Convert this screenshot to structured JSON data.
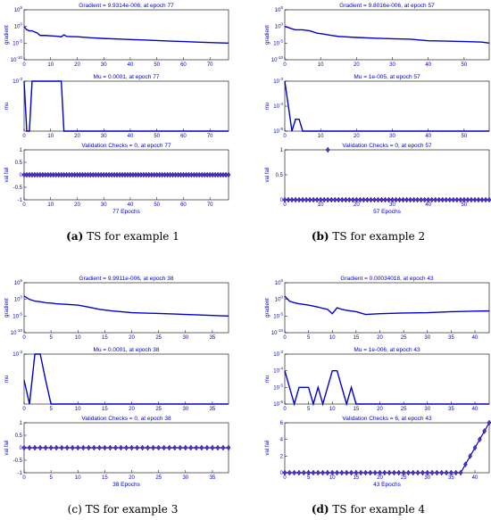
{
  "captions": [
    {
      "label": "(a)",
      "text": "TS for example 1"
    },
    {
      "label": "(b)",
      "text": "TS for example 2"
    },
    {
      "label": "(c)",
      "text": "TS for example 3"
    },
    {
      "label": "(d)",
      "text": "TS for example 4"
    }
  ],
  "colors": {
    "line": "#0000cc",
    "axis_text": "#0000cc",
    "marker_fill": "#5533aa",
    "marker_edge": "#0000cc"
  },
  "chart_data": [
    {
      "type": "line",
      "id": "a",
      "xlim": [
        0,
        77
      ],
      "xticks": [
        0,
        10,
        20,
        30,
        40,
        50,
        60,
        70
      ],
      "xlabel": "77 Epochs",
      "panels": [
        {
          "title": "Gradient = 9.9314e-006, at epoch 77",
          "ylabel": "gradient",
          "yscale": "log",
          "ylim": [
            1e-10,
            100000
          ],
          "yticks": [
            {
              "v": 100000,
              "t": "10^5"
            },
            {
              "v": 1,
              "t": "10^0"
            },
            {
              "v": 1e-05,
              "t": "10^-5"
            },
            {
              "v": 1e-10,
              "t": "10^-10"
            }
          ],
          "x": [
            0,
            1,
            2,
            3,
            5,
            6,
            8,
            10,
            12,
            14,
            15,
            16,
            18,
            20,
            25,
            30,
            35,
            40,
            45,
            50,
            55,
            60,
            65,
            70,
            75,
            77
          ],
          "y": [
            1,
            0.1,
            0.05,
            0.05,
            0.01,
            0.002,
            0.002,
            0.0015,
            0.0012,
            0.0008,
            0.003,
            0.001,
            0.0009,
            0.0008,
            0.0004,
            0.00025,
            0.00018,
            0.00012,
            9e-05,
            6e-05,
            4e-05,
            3e-05,
            2e-05,
            1.5e-05,
            1.1e-05,
            9.9e-06
          ]
        },
        {
          "title": "Mu = 0.0001, at epoch 77",
          "ylabel": "mu",
          "yscale": "log",
          "ylim": [
            0.0001,
            0.001
          ],
          "yticks": [
            {
              "v": 0.001,
              "t": "10^-3"
            }
          ],
          "x": [
            0,
            1,
            2,
            3,
            14,
            15,
            77
          ],
          "y": [
            0.001,
            0.0001,
            0.0001,
            0.001,
            0.001,
            0.0001,
            0.0001
          ]
        },
        {
          "title": "Validation Checks = 0, at epoch 77",
          "ylabel": "val fail",
          "yscale": "linear",
          "ylim": [
            -1,
            1
          ],
          "yticks": [
            {
              "v": 1,
              "t": "1"
            },
            {
              "v": 0.5,
              "t": "0.5"
            },
            {
              "v": 0,
              "t": "0"
            },
            {
              "v": -0.5,
              "t": "-0.5"
            },
            {
              "v": -1,
              "t": "-1"
            }
          ],
          "markers": "all",
          "x": "0..77",
          "y": 0
        }
      ]
    },
    {
      "type": "line",
      "id": "b",
      "xlim": [
        0,
        57
      ],
      "xticks": [
        0,
        10,
        20,
        30,
        40,
        50
      ],
      "xlabel": "57 Epochs",
      "panels": [
        {
          "title": "Gradient = 9.8016e-006, at epoch 57",
          "ylabel": "gradient",
          "yscale": "log",
          "ylim": [
            1e-10,
            100000
          ],
          "yticks": [
            {
              "v": 100000,
              "t": "10^5"
            },
            {
              "v": 1,
              "t": "10^0"
            },
            {
              "v": 1e-05,
              "t": "10^-5"
            },
            {
              "v": 1e-10,
              "t": "10^-10"
            }
          ],
          "x": [
            0,
            1,
            2,
            3,
            5,
            7,
            9,
            11,
            13,
            15,
            20,
            25,
            30,
            35,
            40,
            45,
            50,
            55,
            57
          ],
          "y": [
            1,
            0.5,
            0.2,
            0.1,
            0.1,
            0.05,
            0.01,
            0.005,
            0.002,
            0.001,
            0.0005,
            0.0003,
            0.0002,
            0.00015,
            5e-05,
            4e-05,
            3e-05,
            2e-05,
            9.8e-06
          ]
        },
        {
          "title": "Mu = 1e-005, at epoch 57",
          "ylabel": "mu",
          "yscale": "log",
          "ylim": [
            1e-05,
            0.001
          ],
          "yticks": [
            {
              "v": 0.001,
              "t": "10^-3"
            },
            {
              "v": 0.0001,
              "t": "10^-4"
            },
            {
              "v": 1e-05,
              "t": "10^-5"
            }
          ],
          "x": [
            0,
            1,
            2,
            3,
            4,
            5,
            6,
            57
          ],
          "y": [
            0.001,
            0.0001,
            1e-05,
            3e-05,
            3e-05,
            1e-05,
            1e-05,
            1e-05
          ]
        },
        {
          "title": "Validation Checks = 0, at epoch 57",
          "ylabel": "val fail",
          "yscale": "linear",
          "ylim": [
            0,
            1
          ],
          "yticks": [
            {
              "v": 1,
              "t": "1"
            },
            {
              "v": 0.5,
              "t": "0.5"
            },
            {
              "v": 0,
              "t": "0"
            }
          ],
          "markers": "all",
          "x": "0..57",
          "y": 0,
          "special": [
            {
              "x": 12,
              "y": 1
            }
          ]
        }
      ]
    },
    {
      "type": "line",
      "id": "c",
      "xlim": [
        0,
        38
      ],
      "xticks": [
        0,
        5,
        10,
        15,
        20,
        25,
        30,
        35
      ],
      "xlabel": "38 Epochs",
      "panels": [
        {
          "title": "Gradient = 9.9911e-006, at epoch 38",
          "ylabel": "gradient",
          "yscale": "log",
          "ylim": [
            1e-10,
            100000
          ],
          "yticks": [
            {
              "v": 100000,
              "t": "10^5"
            },
            {
              "v": 1,
              "t": "10^0"
            },
            {
              "v": 1e-05,
              "t": "10^-5"
            },
            {
              "v": 1e-10,
              "t": "10^-10"
            }
          ],
          "x": [
            0,
            1,
            2,
            3,
            4,
            5,
            6,
            8,
            10,
            12,
            14,
            16,
            18,
            20,
            22,
            25,
            28,
            30,
            33,
            35,
            38
          ],
          "y": [
            10,
            1,
            0.3,
            0.2,
            0.1,
            0.08,
            0.05,
            0.03,
            0.02,
            0.005,
            0.001,
            0.0004,
            0.0002,
            0.0001,
            8e-05,
            6e-05,
            4e-05,
            3e-05,
            2e-05,
            1.5e-05,
            1e-05
          ]
        },
        {
          "title": "Mu = 0.0001, at epoch 38",
          "ylabel": "mu",
          "yscale": "log",
          "ylim": [
            0.0001,
            0.001
          ],
          "yticks": [
            {
              "v": 0.001,
              "t": "10^-3"
            }
          ],
          "x": [
            0,
            1,
            2,
            3,
            4,
            5,
            38
          ],
          "y": [
            0.0003,
            0.0001,
            0.001,
            0.001,
            0.0003,
            0.0001,
            0.0001
          ]
        },
        {
          "title": "Validation Checks = 0, at epoch 38",
          "ylabel": "val fail",
          "yscale": "linear",
          "ylim": [
            -1,
            1
          ],
          "yticks": [
            {
              "v": 1,
              "t": "1"
            },
            {
              "v": 0.5,
              "t": "0.5"
            },
            {
              "v": 0,
              "t": "0"
            },
            {
              "v": -0.5,
              "t": "-0.5"
            },
            {
              "v": -1,
              "t": "-1"
            }
          ],
          "markers": "all",
          "x": "0..38",
          "y": 0
        }
      ]
    },
    {
      "type": "line",
      "id": "d",
      "xlim": [
        0,
        43
      ],
      "xticks": [
        0,
        5,
        10,
        15,
        20,
        25,
        30,
        35,
        40
      ],
      "xlabel": "43 Epochs",
      "panels": [
        {
          "title": "Gradient = 0.00034018, at epoch 43",
          "ylabel": "gradient",
          "yscale": "log",
          "ylim": [
            1e-10,
            100000
          ],
          "yticks": [
            {
              "v": 100000,
              "t": "10^5"
            },
            {
              "v": 1,
              "t": "10^0"
            },
            {
              "v": 1e-05,
              "t": "10^-5"
            },
            {
              "v": 1e-10,
              "t": "10^-10"
            }
          ],
          "x": [
            0,
            1,
            2,
            3,
            4,
            5,
            6,
            7,
            8,
            9,
            10,
            11,
            12,
            13,
            15,
            17,
            20,
            25,
            30,
            35,
            40,
            43
          ],
          "y": [
            10,
            0.3,
            0.1,
            0.05,
            0.03,
            0.02,
            0.01,
            0.005,
            0.002,
            0.001,
            5e-05,
            0.003,
            0.001,
            0.0005,
            0.0002,
            3e-05,
            5e-05,
            8e-05,
            0.0001,
            0.0002,
            0.0003,
            0.00034018
          ]
        },
        {
          "title": "Mu = 1e-006, at epoch 43",
          "ylabel": "mu",
          "yscale": "log",
          "ylim": [
            1e-06,
            0.001
          ],
          "yticks": [
            {
              "v": 0.001,
              "t": "10^-3"
            },
            {
              "v": 0.0001,
              "t": "10^-4"
            },
            {
              "v": 1e-05,
              "t": "10^-5"
            },
            {
              "v": 1e-06,
              "t": "10^-6"
            }
          ],
          "x": [
            0,
            1,
            2,
            3,
            4,
            5,
            6,
            7,
            8,
            9,
            10,
            11,
            12,
            13,
            14,
            15,
            43
          ],
          "y": [
            0.0001,
            1e-05,
            1e-06,
            1e-05,
            1e-05,
            1e-05,
            1e-06,
            1e-05,
            1e-06,
            1e-05,
            0.0001,
            0.0001,
            1e-05,
            1e-06,
            1e-05,
            1e-06,
            1e-06
          ]
        },
        {
          "title": "Validation Checks = 6, at epoch 43",
          "ylabel": "val fail",
          "yscale": "linear",
          "ylim": [
            0,
            6
          ],
          "yticks": [
            {
              "v": 6,
              "t": "6"
            },
            {
              "v": 4,
              "t": "4"
            },
            {
              "v": 2,
              "t": "2"
            },
            {
              "v": 0,
              "t": "0"
            }
          ],
          "markers": "all",
          "x": "0..43",
          "y": 0,
          "ramp": {
            "from": 37,
            "values": [
              0,
              1,
              2,
              3,
              4,
              5,
              6
            ]
          }
        }
      ]
    }
  ]
}
